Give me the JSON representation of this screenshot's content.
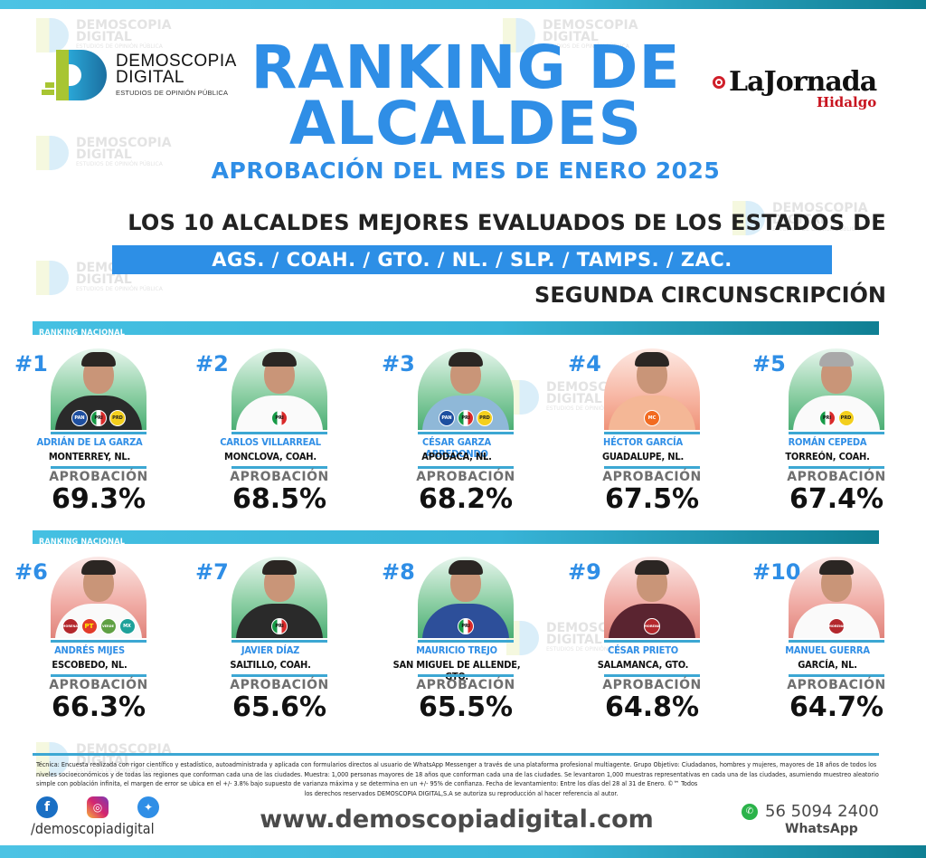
{
  "brand": {
    "logo_line1": "DEMOSCOPIA",
    "logo_line2": "DIGITAL",
    "logo_tagline": "ESTUDIOS DE OPINIÓN PÚBLICA",
    "watermark_line1": "DEMOSCOPIA",
    "watermark_line2": "DIGITAL",
    "watermark_line3": "ESTUDIOS DE OPINIÓN PÚBLICA"
  },
  "partner": {
    "name": "LaJornada",
    "region": "Hidalgo"
  },
  "header": {
    "title_line1": "RANKING DE",
    "title_line2": "ALCALDES",
    "subtitle": "APROBACIÓN DEL MES DE ENERO 2025",
    "headline": "LOS 10 ALCALDES MEJORES EVALUADOS DE LOS ESTADOS DE",
    "states": "AGS. /  COAH. /  GTO. /  NL. /  SLP. /  TAMPS. /  ZAC.",
    "circunscripcion": "SEGUNDA CIRCUNSCRIPCIÓN"
  },
  "sections": [
    {
      "label": "RANKING NACIONAL"
    },
    {
      "label": "RANKING NACIONAL"
    }
  ],
  "approval_label": "APROBACIÓN",
  "colors": {
    "accent_blue": "#2f8ee6",
    "band_cyan": "#38b4d8",
    "band_teal": "#0f7f93",
    "text_dark": "#111111",
    "label_grey": "#6f6f6f"
  },
  "ranking": [
    {
      "rank": "#1",
      "name": "ADRIÁN DE LA GARZA",
      "city": "MONTERREY, NL.",
      "approval": "69.3%",
      "bg": "green",
      "parties": [
        "PAN",
        "PRI",
        "PRD"
      ]
    },
    {
      "rank": "#2",
      "name": "CARLOS VILLARREAL",
      "city": "MONCLOVA, COAH.",
      "approval": "68.5%",
      "bg": "green",
      "parties": [
        "PRI"
      ]
    },
    {
      "rank": "#3",
      "name": "CÉSAR GARZA ARREDONDO",
      "city": "APODACA, NL.",
      "approval": "68.2%",
      "bg": "green",
      "parties": [
        "PAN",
        "PRI",
        "PRD"
      ]
    },
    {
      "rank": "#4",
      "name": "HÉCTOR GARCÍA",
      "city": "GUADALUPE, NL.",
      "approval": "67.5%",
      "bg": "salmon",
      "parties": [
        "MC"
      ]
    },
    {
      "rank": "#5",
      "name": "ROMÁN CEPEDA",
      "city": "TORREÓN, COAH.",
      "approval": "67.4%",
      "bg": "green",
      "parties": [
        "PRI",
        "PRD"
      ]
    },
    {
      "rank": "#6",
      "name": "ANDRÉS MIJES",
      "city": "ESCOBEDO, NL.",
      "approval": "66.3%",
      "bg": "red",
      "parties": [
        "MORENA",
        "PT",
        "VERDE",
        "MX"
      ]
    },
    {
      "rank": "#7",
      "name": "JAVIER DÍAZ",
      "city": "SALTILLO, COAH.",
      "approval": "65.6%",
      "bg": "green",
      "parties": [
        "PRI"
      ]
    },
    {
      "rank": "#8",
      "name": "MAURICIO TREJO",
      "city": "SAN MIGUEL DE ALLENDE, GTO.",
      "approval": "65.5%",
      "bg": "green",
      "parties": [
        "PRI"
      ]
    },
    {
      "rank": "#9",
      "name": "CÉSAR PRIETO",
      "city": "SALAMANCA, GTO.",
      "approval": "64.8%",
      "bg": "red",
      "parties": [
        "MORENA"
      ]
    },
    {
      "rank": "#10",
      "name": "MANUEL GUERRA",
      "city": "GARCÍA, NL.",
      "approval": "64.7%",
      "bg": "red",
      "parties": [
        "MORENA"
      ]
    }
  ],
  "chart_data": {
    "type": "bar",
    "title": "RANKING DE ALCALDES - APROBACIÓN DEL MES DE ENERO 2025",
    "categories": [
      "ADRIÁN DE LA GARZA",
      "CARLOS VILLARREAL",
      "CÉSAR GARZA ARREDONDO",
      "HÉCTOR GARCÍA",
      "ROMÁN CEPEDA",
      "ANDRÉS MIJES",
      "JAVIER DÍAZ",
      "MAURICIO TREJO",
      "CÉSAR PRIETO",
      "MANUEL GUERRA"
    ],
    "values": [
      69.3,
      68.5,
      68.2,
      67.5,
      67.4,
      66.3,
      65.6,
      65.5,
      64.8,
      64.7
    ],
    "ylabel": "APROBACIÓN (%)"
  },
  "footer": {
    "tech_note": "Técnica: Encuesta realizada con rigor científico y estadístico, autoadministrada y aplicada con formularios directos al usuario de WhatsApp Messenger a través de una plataforma profesional multiagente. Grupo Objetivo: Ciudadanos, hombres y mujeres, mayores de 18 años de todos los niveles socioeconómicos y de todas las regiones que conforman cada una de las ciudades. Muestra: 1,000 personas mayores de 18 años que conforman cada una de las ciudades. Se levantaron 1,000 muestras representativas en cada una de las ciudades, asumiendo muestreo aleatorio simple con población infinita, el margen de error se ubica en el +/- 3.8% bajo supuesto de varianza máxima y se determina en un +/- 95% de confianza. Fecha de levantamiento: Entre los días del 28 al 31 de Enero. ©™ Todos",
    "tech_note_last": "los derechos reservados DEMOSCOPIA DIGITAL,S.A se autoriza su reproducción al hacer referencia al autor.",
    "social_handle": "/demoscopiadigital",
    "website": "www.demoscopiadigital.com",
    "whatsapp_number": "56 5094 2400",
    "whatsapp_label": "WhatsApp",
    "icons": [
      "facebook-icon",
      "instagram-icon",
      "twitter-icon",
      "whatsapp-icon"
    ]
  }
}
